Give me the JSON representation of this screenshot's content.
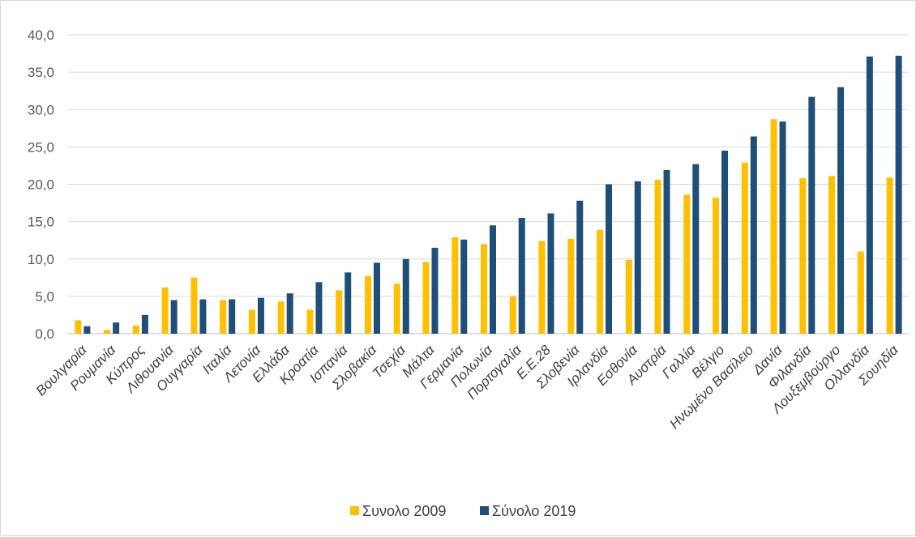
{
  "chart_data": {
    "type": "bar",
    "title": "",
    "xlabel": "",
    "ylabel": "",
    "ylim": [
      0,
      40
    ],
    "yticks": [
      "0,0",
      "5,0",
      "10,0",
      "15,0",
      "20,0",
      "25,0",
      "30,0",
      "35,0",
      "40,0"
    ],
    "grid": "horizontal",
    "legend_position": "bottom",
    "categories": [
      "Βουλγαρία",
      "Ρουμανία",
      "Κύπρος",
      "Λιθουανία",
      "Ουγγαρία",
      "Ιταλία",
      "Λετονία",
      "Ελλάδα",
      "Κροατία",
      "Ισπανία",
      "Σλοβακία",
      "Τσεχία",
      "Μάλτα",
      "Γερμανία",
      "Πολωνία",
      "Πορτογαλία",
      "Ε.Ε.28",
      "Σλοβενία",
      "Ιρλανδία",
      "Εσθονία",
      "Αυστρία",
      "Γαλλία",
      "Βέλγιο",
      "Ηνωμένο Βασίλειο",
      "Δανία",
      "Φιλανδία",
      "Λουξεμβούργο",
      "Ολλανδία",
      "Σουηδία"
    ],
    "series": [
      {
        "name": "Συνολο 2009",
        "color": "#ffc000",
        "values": [
          1.8,
          0.5,
          1.1,
          6.2,
          7.5,
          4.5,
          3.2,
          4.3,
          3.2,
          5.8,
          7.7,
          6.7,
          9.6,
          12.9,
          12.0,
          5.0,
          12.4,
          12.7,
          13.9,
          9.9,
          20.6,
          18.6,
          18.2,
          22.9,
          28.7,
          20.8,
          21.1,
          11.0,
          20.9
        ]
      },
      {
        "name": "Σύνολο 2019",
        "color": "#1f4e79",
        "values": [
          1.0,
          1.5,
          2.5,
          4.5,
          4.6,
          4.6,
          4.8,
          5.4,
          6.9,
          8.2,
          9.5,
          10.0,
          11.5,
          12.6,
          14.5,
          15.5,
          16.1,
          17.8,
          20.0,
          20.4,
          21.9,
          22.7,
          24.5,
          26.4,
          28.4,
          31.7,
          33.0,
          37.1,
          37.2
        ]
      }
    ]
  }
}
